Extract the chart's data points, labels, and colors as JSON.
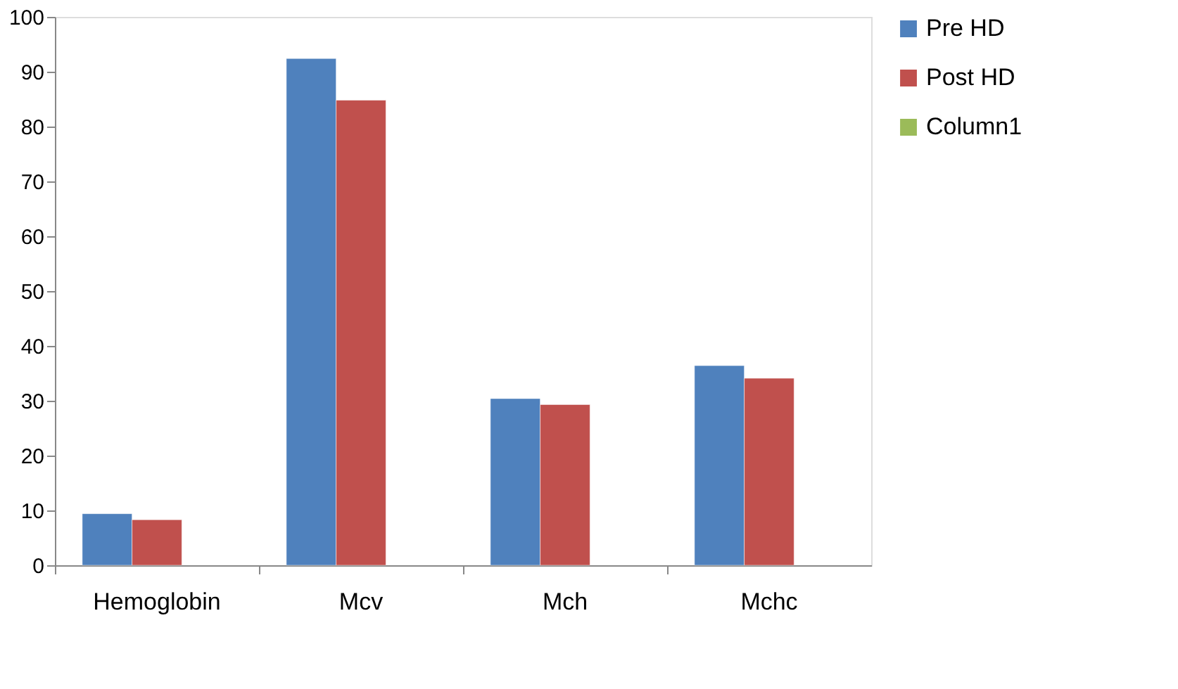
{
  "chart_data": {
    "type": "bar",
    "categories": [
      "Hemoglobin",
      "Mcv",
      "Mch",
      "Mchc"
    ],
    "series": [
      {
        "name": "Pre HD",
        "color": "#4f81bd",
        "values": [
          9.4,
          92.4,
          30.4,
          36.4
        ]
      },
      {
        "name": "Post HD",
        "color": "#c0504d",
        "values": [
          8.3,
          84.8,
          29.3,
          34.1
        ]
      },
      {
        "name": "Column1",
        "color": "#9bbb59",
        "values": [
          null,
          null,
          null,
          null
        ]
      }
    ],
    "ylim": [
      0,
      100
    ],
    "yticks": [
      0,
      10,
      20,
      30,
      40,
      50,
      60,
      70,
      80,
      90,
      100
    ],
    "grid": false,
    "legend": "right"
  }
}
